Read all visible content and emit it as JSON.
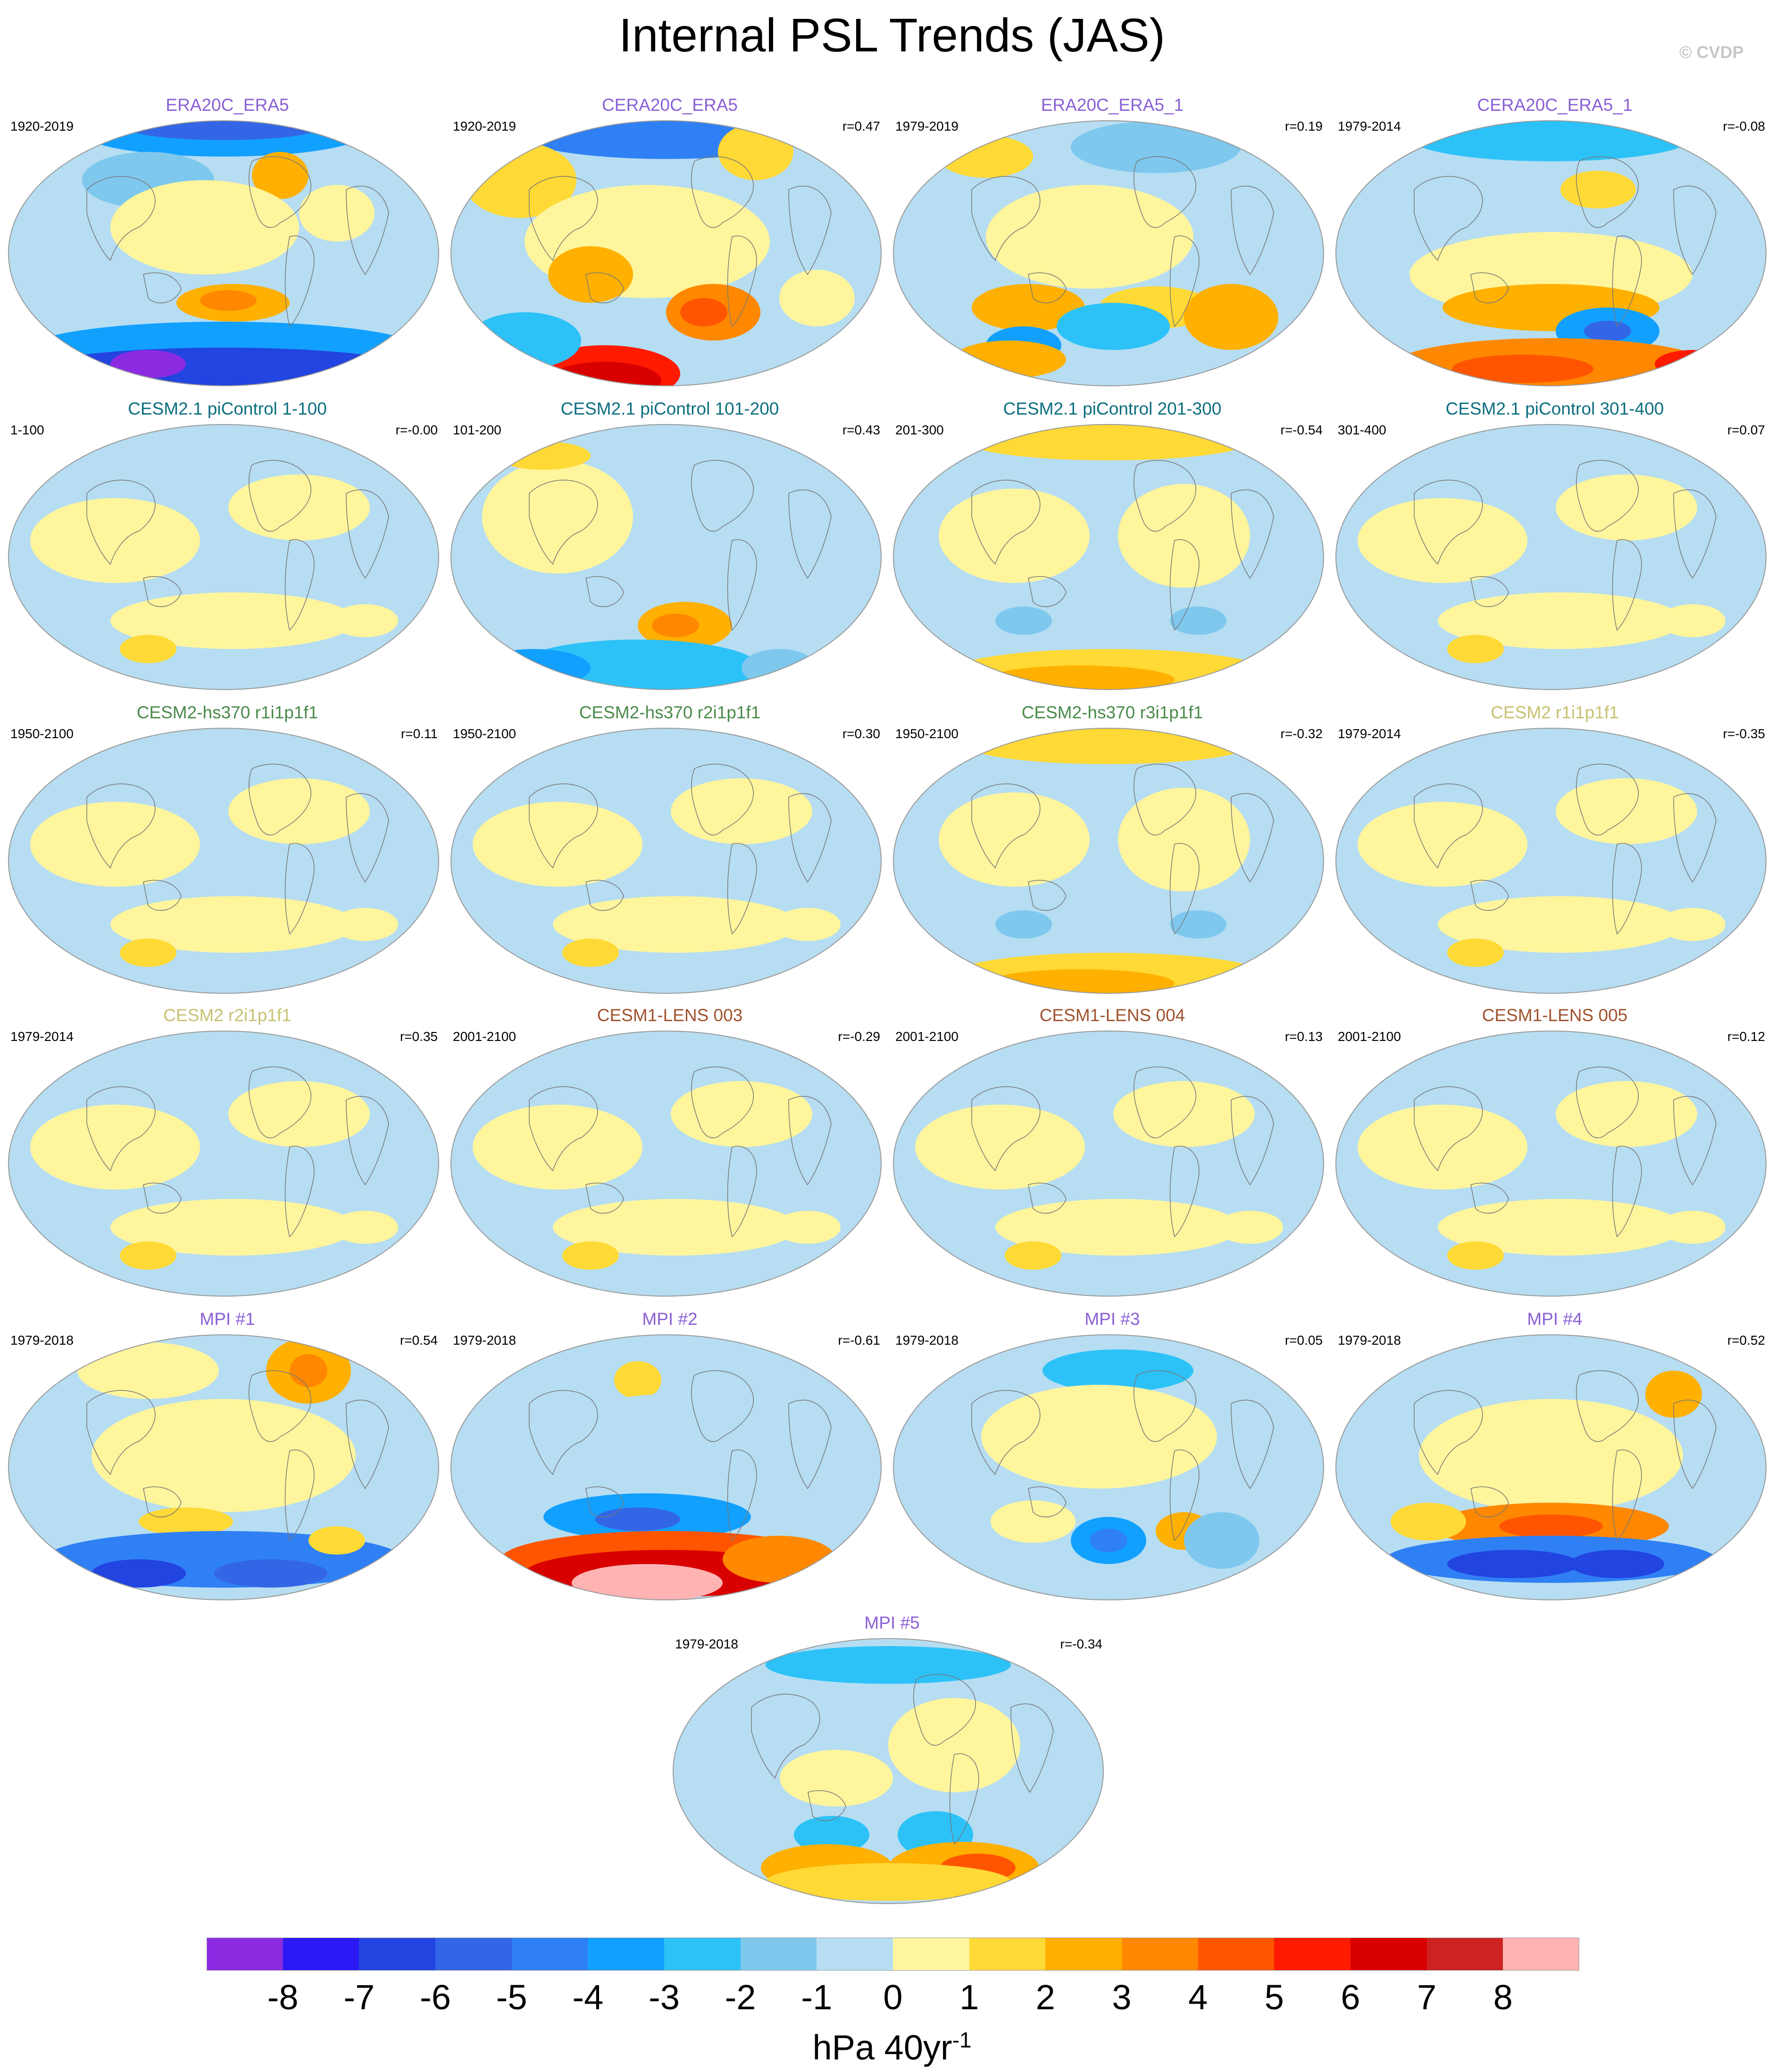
{
  "title": "Internal PSL Trends (JAS)",
  "watermark": "© CVDP",
  "units": {
    "base": "hPa 40yr",
    "exp": "-1"
  },
  "colorbar": {
    "ticks": [
      "-8",
      "-7",
      "-6",
      "-5",
      "-4",
      "-3",
      "-2",
      "-1",
      "0",
      "1",
      "2",
      "3",
      "4",
      "5",
      "6",
      "7",
      "8"
    ],
    "colors": [
      "#8a2be2",
      "#2b18f5",
      "#2244e0",
      "#3366e6",
      "#2f80f5",
      "#12a0ff",
      "#2cc2f8",
      "#7ec8ee",
      "#b6ddf2",
      "#fff59d",
      "#ffd935",
      "#ffb000",
      "#ff8800",
      "#ff5500",
      "#ff1a00",
      "#d90000",
      "#cc2222",
      "#ffb3b3"
    ]
  },
  "panels": [
    {
      "title": "ERA20C_ERA5",
      "title_color": "#8a5fd6",
      "period": "1920-2019",
      "r": "",
      "pattern": "era_a"
    },
    {
      "title": "CERA20C_ERA5",
      "title_color": "#8a5fd6",
      "period": "1920-2019",
      "r": "r=0.47",
      "pattern": "era_b"
    },
    {
      "title": "ERA20C_ERA5_1",
      "title_color": "#8a5fd6",
      "period": "1979-2019",
      "r": "r=0.19",
      "pattern": "era_c"
    },
    {
      "title": "CERA20C_ERA5_1",
      "title_color": "#8a5fd6",
      "period": "1979-2014",
      "r": "r=-0.08",
      "pattern": "era_d"
    },
    {
      "title": "CESM2.1 piControl 1-100",
      "title_color": "#0b6e7e",
      "period": "1-100",
      "r": "r=-0.00",
      "pattern": "weak"
    },
    {
      "title": "CESM2.1 piControl 101-200",
      "title_color": "#0b6e7e",
      "period": "101-200",
      "r": "r=0.43",
      "pattern": "pic2"
    },
    {
      "title": "CESM2.1 piControl 201-300",
      "title_color": "#0b6e7e",
      "period": "201-300",
      "r": "r=-0.54",
      "pattern": "pic3"
    },
    {
      "title": "CESM2.1 piControl 301-400",
      "title_color": "#0b6e7e",
      "period": "301-400",
      "r": "r=0.07",
      "pattern": "weak"
    },
    {
      "title": "CESM2-hs370 r1i1p1f1",
      "title_color": "#4a8a4a",
      "period": "1950-2100",
      "r": "r=0.11",
      "pattern": "weak"
    },
    {
      "title": "CESM2-hs370 r2i1p1f1",
      "title_color": "#4a8a4a",
      "period": "1950-2100",
      "r": "r=0.30",
      "pattern": "weak"
    },
    {
      "title": "CESM2-hs370 r3i1p1f1",
      "title_color": "#4a8a4a",
      "period": "1950-2100",
      "r": "r=-0.32",
      "pattern": "pic3"
    },
    {
      "title": "CESM2 r1i1p1f1",
      "title_color": "#c8c070",
      "period": "1979-2014",
      "r": "r=-0.35",
      "pattern": "weak"
    },
    {
      "title": "CESM2 r2i1p1f1",
      "title_color": "#c8c070",
      "period": "1979-2014",
      "r": "r=0.35",
      "pattern": "weak"
    },
    {
      "title": "CESM1-LENS 003",
      "title_color": "#a0522d",
      "period": "2001-2100",
      "r": "r=-0.29",
      "pattern": "weak"
    },
    {
      "title": "CESM1-LENS 004",
      "title_color": "#a0522d",
      "period": "2001-2100",
      "r": "r=0.13",
      "pattern": "weak"
    },
    {
      "title": "CESM1-LENS 005",
      "title_color": "#a0522d",
      "period": "2001-2100",
      "r": "r=0.12",
      "pattern": "weak"
    },
    {
      "title": "MPI #1",
      "title_color": "#8a5fd6",
      "period": "1979-2018",
      "r": "r=0.54",
      "pattern": "mpi1"
    },
    {
      "title": "MPI #2",
      "title_color": "#8a5fd6",
      "period": "1979-2018",
      "r": "r=-0.61",
      "pattern": "mpi2"
    },
    {
      "title": "MPI #3",
      "title_color": "#8a5fd6",
      "period": "1979-2018",
      "r": "r=0.05",
      "pattern": "mpi3"
    },
    {
      "title": "MPI #4",
      "title_color": "#8a5fd6",
      "period": "1979-2018",
      "r": "r=0.52",
      "pattern": "mpi4"
    },
    {
      "title": "MPI #5",
      "title_color": "#8a5fd6",
      "period": "1979-2018",
      "r": "r=-0.34",
      "pattern": "mpi5"
    }
  ]
}
